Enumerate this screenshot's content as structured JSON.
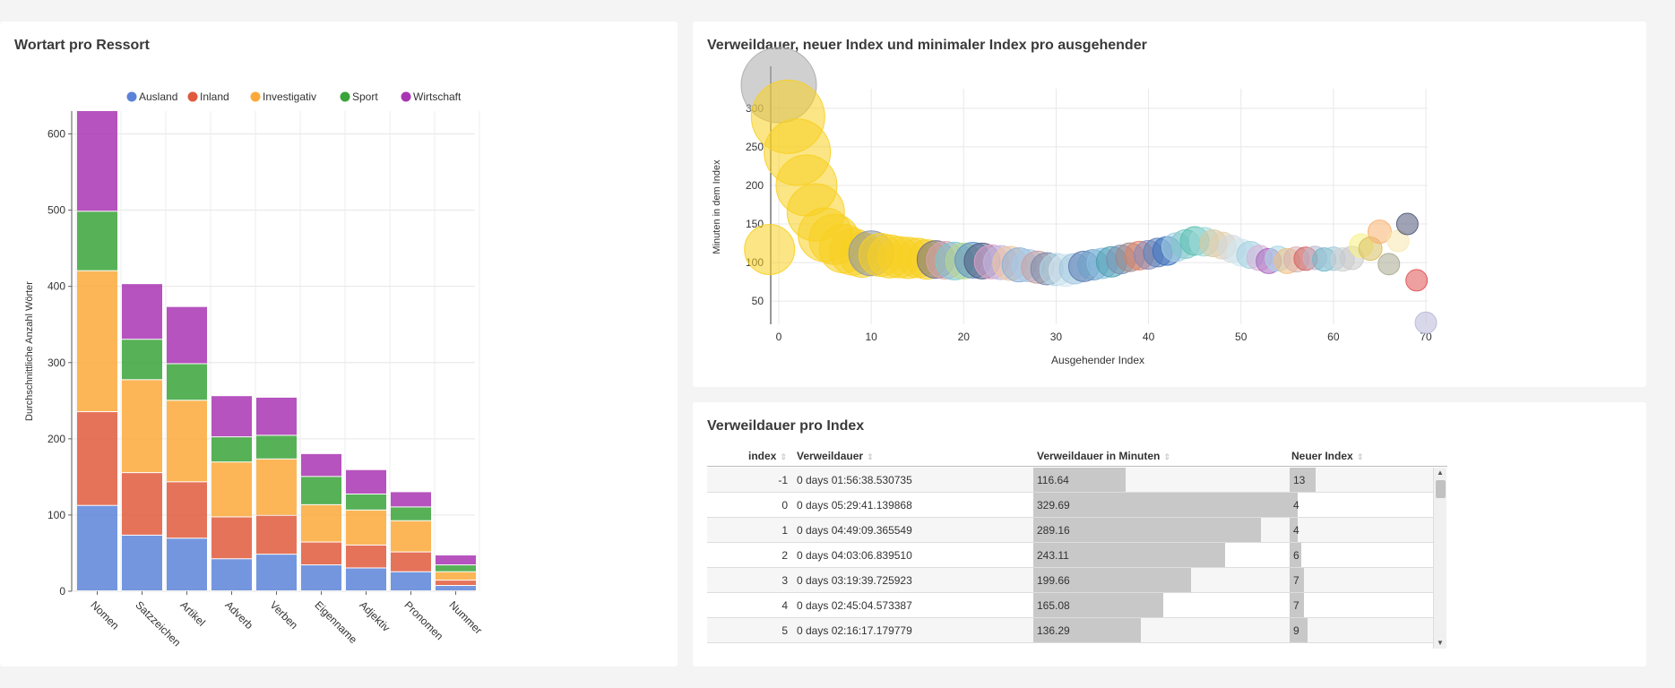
{
  "panels": {
    "bar_title": "Wortart pro Ressort",
    "bubble_title": "Verweildauer, neuer Index und minimaler Index pro ausgehender",
    "table_title": "Verweildauer pro Index"
  },
  "colors": {
    "Ausland": "#5b84d9",
    "Inland": "#e05a3d",
    "Investigativ": "#fca93a",
    "Sport": "#3aa33a",
    "Wirtschaft": "#a935b3"
  },
  "chart_data": [
    {
      "type": "bar",
      "stacked": true,
      "title": "Wortart pro Ressort",
      "xlabel": "",
      "ylabel": "Durchschnittliche Anzahl Wörter",
      "ylim": [
        0,
        630
      ],
      "yticks": [
        0,
        100,
        200,
        300,
        400,
        500,
        600
      ],
      "legend_position": "top",
      "grid": true,
      "categories": [
        "Nomen",
        "Satzzeichen",
        "Artikel",
        "Adverb",
        "Verben",
        "Eigenname",
        "Adjektiv",
        "Pronomen",
        "Nummer"
      ],
      "series": [
        {
          "name": "Ausland",
          "values": [
            112,
            73,
            69,
            42,
            48,
            34,
            30,
            25,
            7
          ]
        },
        {
          "name": "Inland",
          "values": [
            123,
            82,
            74,
            55,
            51,
            30,
            30,
            26,
            7
          ]
        },
        {
          "name": "Investigativ",
          "values": [
            185,
            122,
            107,
            72,
            74,
            49,
            46,
            41,
            11
          ]
        },
        {
          "name": "Sport",
          "values": [
            78,
            53,
            48,
            33,
            31,
            37,
            21,
            18,
            9
          ]
        },
        {
          "name": "Wirtschaft",
          "values": [
            132,
            73,
            75,
            54,
            50,
            30,
            32,
            20,
            13
          ]
        }
      ]
    },
    {
      "type": "scatter",
      "subtype": "bubble",
      "title": "Verweildauer, neuer Index und minimaler Index pro ausgehender",
      "xlabel": "Ausgehender Index",
      "ylabel": "Minuten in dem Index",
      "xlim": [
        -1,
        70
      ],
      "ylim": [
        20,
        330
      ],
      "xticks": [
        0,
        10,
        20,
        30,
        40,
        50,
        60,
        70
      ],
      "yticks": [
        50,
        100,
        150,
        200,
        250,
        300
      ],
      "grid": true,
      "points": [
        {
          "x": 0,
          "y": 330,
          "r": 42,
          "color": "#aaaaaa"
        },
        {
          "x": -1,
          "y": 117,
          "r": 28,
          "color": "#f8d020"
        },
        {
          "x": 1,
          "y": 289,
          "r": 41,
          "color": "#f8d020"
        },
        {
          "x": 2,
          "y": 243,
          "r": 37,
          "color": "#f8d020"
        },
        {
          "x": 3,
          "y": 200,
          "r": 34,
          "color": "#f8d020"
        },
        {
          "x": 4,
          "y": 165,
          "r": 32,
          "color": "#f8d020"
        },
        {
          "x": 5,
          "y": 136,
          "r": 30,
          "color": "#f8d020"
        },
        {
          "x": 6,
          "y": 130,
          "r": 28,
          "color": "#f8d020"
        },
        {
          "x": 7,
          "y": 118,
          "r": 27,
          "color": "#f8d020"
        },
        {
          "x": 8,
          "y": 114,
          "r": 26,
          "color": "#f8d020"
        },
        {
          "x": 9,
          "y": 110,
          "r": 25,
          "color": "#f8d020"
        },
        {
          "x": 10,
          "y": 112,
          "r": 25,
          "color": "#8a93a8"
        },
        {
          "x": 11,
          "y": 110,
          "r": 24,
          "color": "#f8d020"
        },
        {
          "x": 12,
          "y": 108,
          "r": 24,
          "color": "#f8d020"
        },
        {
          "x": 13,
          "y": 107,
          "r": 23,
          "color": "#f8d020"
        },
        {
          "x": 14,
          "y": 106,
          "r": 23,
          "color": "#f8d020"
        },
        {
          "x": 15,
          "y": 106,
          "r": 22,
          "color": "#f8d020"
        },
        {
          "x": 16,
          "y": 104,
          "r": 22,
          "color": "#f8d020"
        },
        {
          "x": 17,
          "y": 104,
          "r": 21,
          "color": "#6b6b8a"
        },
        {
          "x": 18,
          "y": 103,
          "r": 21,
          "color": "#d9a3b0"
        },
        {
          "x": 19,
          "y": 102,
          "r": 21,
          "color": "#7ac8d0"
        },
        {
          "x": 20,
          "y": 102,
          "r": 20,
          "color": "#b8d88c"
        },
        {
          "x": 21,
          "y": 103,
          "r": 20,
          "color": "#5a8fc8"
        },
        {
          "x": 22,
          "y": 102,
          "r": 20,
          "color": "#4a5a80"
        },
        {
          "x": 23,
          "y": 101,
          "r": 19,
          "color": "#e0a0c8"
        },
        {
          "x": 24,
          "y": 100,
          "r": 19,
          "color": "#c0b8e0"
        },
        {
          "x": 25,
          "y": 99,
          "r": 19,
          "color": "#f0c8a0"
        },
        {
          "x": 26,
          "y": 97,
          "r": 19,
          "color": "#8ab0d8"
        },
        {
          "x": 27,
          "y": 96,
          "r": 18,
          "color": "#a8c8e8"
        },
        {
          "x": 28,
          "y": 94,
          "r": 18,
          "color": "#c8a0a0"
        },
        {
          "x": 29,
          "y": 92,
          "r": 18,
          "color": "#7888a8"
        },
        {
          "x": 30,
          "y": 91,
          "r": 18,
          "color": "#b0d8e8"
        },
        {
          "x": 31,
          "y": 90,
          "r": 18,
          "color": "#d8e8f0"
        },
        {
          "x": 32,
          "y": 92,
          "r": 17,
          "color": "#a0c8e0"
        },
        {
          "x": 33,
          "y": 95,
          "r": 17,
          "color": "#5a7ab0"
        },
        {
          "x": 34,
          "y": 97,
          "r": 17,
          "color": "#6aa0c8"
        },
        {
          "x": 35,
          "y": 99,
          "r": 17,
          "color": "#8ac0e0"
        },
        {
          "x": 36,
          "y": 101,
          "r": 17,
          "color": "#4aa0b0"
        },
        {
          "x": 37,
          "y": 104,
          "r": 16,
          "color": "#7890b0"
        },
        {
          "x": 38,
          "y": 107,
          "r": 16,
          "color": "#a08888"
        },
        {
          "x": 39,
          "y": 109,
          "r": 16,
          "color": "#e08060"
        },
        {
          "x": 40,
          "y": 110,
          "r": 16,
          "color": "#8888b8"
        },
        {
          "x": 41,
          "y": 113,
          "r": 16,
          "color": "#5880b8"
        },
        {
          "x": 42,
          "y": 115,
          "r": 16,
          "color": "#3a70c0"
        },
        {
          "x": 43,
          "y": 120,
          "r": 16,
          "color": "#a0d0e0"
        },
        {
          "x": 44,
          "y": 124,
          "r": 16,
          "color": "#80c8c8"
        },
        {
          "x": 45,
          "y": 128,
          "r": 16,
          "color": "#58c0b0"
        },
        {
          "x": 46,
          "y": 127,
          "r": 16,
          "color": "#a0d8d8"
        },
        {
          "x": 47,
          "y": 125,
          "r": 15,
          "color": "#d8c8a0"
        },
        {
          "x": 48,
          "y": 122,
          "r": 15,
          "color": "#e0d0b0"
        },
        {
          "x": 49,
          "y": 118,
          "r": 15,
          "color": "#d0d8e0"
        },
        {
          "x": 50,
          "y": 113,
          "r": 15,
          "color": "#d0e8f0"
        },
        {
          "x": 51,
          "y": 110,
          "r": 15,
          "color": "#a0d0e0"
        },
        {
          "x": 52,
          "y": 106,
          "r": 14,
          "color": "#d8b0d8"
        },
        {
          "x": 53,
          "y": 102,
          "r": 14,
          "color": "#a868c0"
        },
        {
          "x": 54,
          "y": 105,
          "r": 14,
          "color": "#a8d8e8"
        },
        {
          "x": 55,
          "y": 102,
          "r": 14,
          "color": "#f0c080"
        },
        {
          "x": 56,
          "y": 104,
          "r": 14,
          "color": "#d8b0b0"
        },
        {
          "x": 57,
          "y": 105,
          "r": 13,
          "color": "#d06060"
        },
        {
          "x": 58,
          "y": 106,
          "r": 13,
          "color": "#b8b8d0"
        },
        {
          "x": 59,
          "y": 104,
          "r": 13,
          "color": "#70b8c8"
        },
        {
          "x": 60,
          "y": 105,
          "r": 13,
          "color": "#a0c8d8"
        },
        {
          "x": 61,
          "y": 104,
          "r": 13,
          "color": "#d0d0d0"
        },
        {
          "x": 62,
          "y": 106,
          "r": 13,
          "color": "#c8c8c8"
        },
        {
          "x": 63,
          "y": 122,
          "r": 13,
          "color": "#f8f080"
        },
        {
          "x": 64,
          "y": 118,
          "r": 13,
          "color": "#d8c060"
        },
        {
          "x": 65,
          "y": 140,
          "r": 13,
          "color": "#f8b070"
        },
        {
          "x": 66,
          "y": 98,
          "r": 12,
          "color": "#a8a890"
        },
        {
          "x": 67,
          "y": 128,
          "r": 12,
          "color": "#f8e8b0"
        },
        {
          "x": 68,
          "y": 150,
          "r": 12,
          "color": "#505878"
        },
        {
          "x": 69,
          "y": 77,
          "r": 12,
          "color": "#e05050"
        },
        {
          "x": 70,
          "y": 22,
          "r": 12,
          "color": "#b8b8d8"
        }
      ]
    }
  ],
  "table": {
    "headers": {
      "index": "index",
      "verweildauer": "Verweildauer",
      "minuten": "Verweildauer in Minuten",
      "neuer_index": "Neuer Index"
    },
    "minuten_max": 329.69,
    "neuer_index_max": 70,
    "rows": [
      {
        "index": "-1",
        "verweildauer": "0 days 01:56:38.530735",
        "minuten": "116.64",
        "minuten_val": 116.64,
        "neuer_index": "13",
        "neuer_val": 13
      },
      {
        "index": "0",
        "verweildauer": "0 days 05:29:41.139868",
        "minuten": "329.69",
        "minuten_val": 329.69,
        "neuer_index": "4",
        "neuer_val": 4
      },
      {
        "index": "1",
        "verweildauer": "0 days 04:49:09.365549",
        "minuten": "289.16",
        "minuten_val": 289.16,
        "neuer_index": "4",
        "neuer_val": 4
      },
      {
        "index": "2",
        "verweildauer": "0 days 04:03:06.839510",
        "minuten": "243.11",
        "minuten_val": 243.11,
        "neuer_index": "6",
        "neuer_val": 6
      },
      {
        "index": "3",
        "verweildauer": "0 days 03:19:39.725923",
        "minuten": "199.66",
        "minuten_val": 199.66,
        "neuer_index": "7",
        "neuer_val": 7
      },
      {
        "index": "4",
        "verweildauer": "0 days 02:45:04.573387",
        "minuten": "165.08",
        "minuten_val": 165.08,
        "neuer_index": "7",
        "neuer_val": 7
      },
      {
        "index": "5",
        "verweildauer": "0 days 02:16:17.179779",
        "minuten": "136.29",
        "minuten_val": 136.29,
        "neuer_index": "9",
        "neuer_val": 9
      }
    ]
  }
}
